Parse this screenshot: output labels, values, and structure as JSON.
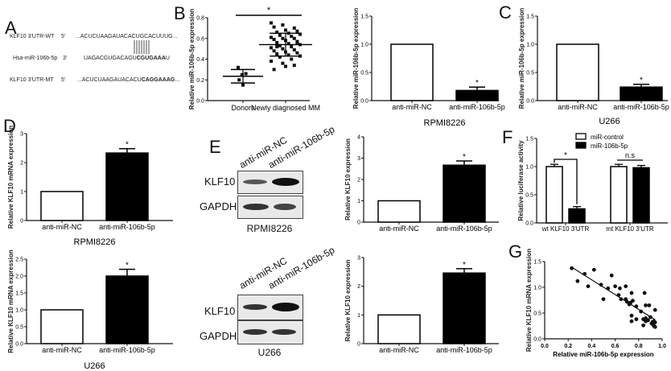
{
  "panels": {
    "A": {
      "letter": "A",
      "rows": [
        {
          "name": "KLF10 3'UTR-WT",
          "end": "5'",
          "seq_plain": "...ACUCUAAGAUACACUGCACUUUG...",
          "seq_bold": ""
        },
        {
          "name": "Hsa-miR-106b-5p",
          "end": "3'",
          "seq_plain": "UAGACGUGACAGU",
          "seq_bold": "CGUGAAA",
          "seq_tail": "U"
        },
        {
          "name": "KLF10 3'UTR-MT",
          "end": "5'",
          "seq_plain": "...ACUCUAAGAUACACU",
          "seq_bold": "CAGGAAAG",
          "seq_tail": "..."
        }
      ]
    },
    "B": {
      "letter": "B"
    },
    "C": {
      "letter": "C"
    },
    "D": {
      "letter": "D"
    },
    "E": {
      "letter": "E",
      "blots": [
        {
          "lanes": [
            "anti-miR-NC",
            "anti-miR-106b-5p"
          ],
          "proteins": [
            "KLF10",
            "GAPDH"
          ],
          "cell_line": "RPMI8226"
        },
        {
          "lanes": [
            "anti-miR-NC",
            "anti-miR-106b-5p"
          ],
          "proteins": [
            "KLF10",
            "GAPDH"
          ],
          "cell_line": "U266"
        }
      ]
    },
    "F": {
      "letter": "F"
    },
    "G": {
      "letter": "G"
    }
  },
  "chart_data": [
    {
      "id": "B",
      "type": "scatter",
      "title": "",
      "ylabel": "Relative miR-106b-5p expression",
      "xlabel": "",
      "categories": [
        "Donors",
        "Newly diagnosed MM"
      ],
      "ylim": [
        0,
        0.8
      ],
      "yticks": [
        "0.0",
        "0.2",
        "0.4",
        "0.6",
        "0.8"
      ],
      "series": [
        {
          "name": "Donors",
          "mean": 0.235,
          "sd_low": 0.17,
          "sd_high": 0.3,
          "values": [
            0.32,
            0.25,
            0.26,
            0.2,
            0.15
          ]
        },
        {
          "name": "Newly diagnosed MM",
          "mean": 0.54,
          "sd_low": 0.43,
          "sd_high": 0.65,
          "values": [
            0.75,
            0.73,
            0.7,
            0.71,
            0.68,
            0.67,
            0.66,
            0.65,
            0.64,
            0.63,
            0.62,
            0.61,
            0.6,
            0.6,
            0.59,
            0.58,
            0.57,
            0.56,
            0.55,
            0.54,
            0.53,
            0.52,
            0.51,
            0.5,
            0.49,
            0.48,
            0.47,
            0.46,
            0.45,
            0.44,
            0.43,
            0.42,
            0.4,
            0.38,
            0.36,
            0.34,
            0.3,
            0.33,
            0.56,
            0.52
          ]
        }
      ],
      "annotations": [
        "*"
      ]
    },
    {
      "id": "B-RPMI8226",
      "type": "bar",
      "ylabel": "Relative miR-106b-5p expression",
      "xlabel": "RPMI8226",
      "categories": [
        "anti-miR-NC",
        "anti-miR-106b-5p"
      ],
      "values": [
        1.0,
        0.18
      ],
      "errors": [
        0,
        0.06
      ],
      "fills": [
        "#ffffff",
        "#000000"
      ],
      "ylim": [
        0,
        1.5
      ],
      "yticks": [
        "0.0",
        "0.5",
        "1.0",
        "1.5"
      ],
      "annotations": [
        "*"
      ]
    },
    {
      "id": "C",
      "type": "bar",
      "ylabel": "Relative miR-106b-5p expression",
      "xlabel": "U266",
      "categories": [
        "anti-miR-NC",
        "anti-miR-106b-5p"
      ],
      "values": [
        1.0,
        0.24
      ],
      "errors": [
        0,
        0.05
      ],
      "fills": [
        "#ffffff",
        "#000000"
      ],
      "ylim": [
        0,
        1.5
      ],
      "yticks": [
        "0.0",
        "0.5",
        "1.0",
        "1.5"
      ],
      "annotations": [
        "*"
      ]
    },
    {
      "id": "D-RPMI8226",
      "type": "bar",
      "ylabel": "Relative KLF10 mRNA expression",
      "xlabel": "RPMI8226",
      "categories": [
        "anti-miR-NC",
        "anti-miR-106b-5p"
      ],
      "values": [
        1.0,
        2.33
      ],
      "errors": [
        0,
        0.15
      ],
      "fills": [
        "#ffffff",
        "#000000"
      ],
      "ylim": [
        0,
        3
      ],
      "yticks": [
        "0",
        "1",
        "2",
        "3"
      ],
      "annotations": [
        "*"
      ]
    },
    {
      "id": "D-U266",
      "type": "bar",
      "ylabel": "Relative KLF10 mRNA expression",
      "xlabel": "U266",
      "categories": [
        "anti-miR-NC",
        "anti-miR-106b-5p"
      ],
      "values": [
        1.0,
        2.0
      ],
      "errors": [
        0,
        0.2
      ],
      "fills": [
        "#ffffff",
        "#000000"
      ],
      "ylim": [
        0,
        2.5
      ],
      "yticks": [
        "0.0",
        "0.5",
        "1.0",
        "1.5",
        "2.0",
        "2.5"
      ],
      "annotations": [
        "*"
      ]
    },
    {
      "id": "E-RPMI8226",
      "type": "bar",
      "ylabel": "Relative KLF10 expression",
      "xlabel": "",
      "categories": [
        "anti-miR-NC",
        "anti-miR-106b-5p"
      ],
      "values": [
        1.0,
        2.67
      ],
      "errors": [
        0,
        0.2
      ],
      "fills": [
        "#ffffff",
        "#000000"
      ],
      "ylim": [
        0,
        4
      ],
      "yticks": [
        "0",
        "1",
        "2",
        "3",
        "4"
      ],
      "annotations": [
        "*"
      ]
    },
    {
      "id": "E-U266",
      "type": "bar",
      "ylabel": "Relative KLF10 expression",
      "xlabel": "",
      "categories": [
        "anti-miR-NC",
        "anti-miR-106b-5p"
      ],
      "values": [
        1.0,
        2.46
      ],
      "errors": [
        0,
        0.15
      ],
      "fills": [
        "#ffffff",
        "#000000"
      ],
      "ylim": [
        0,
        3
      ],
      "yticks": [
        "0",
        "1",
        "2",
        "3"
      ],
      "annotations": [
        "*"
      ]
    },
    {
      "id": "F",
      "type": "bar",
      "ylabel": "Relative luciferase activity",
      "xlabel": "",
      "categories": [
        "wt KLF10 3'UTR",
        "mt KLF10 3'UTR"
      ],
      "series": [
        {
          "name": "miR-control",
          "color": "#ffffff",
          "values": [
            1.0,
            1.0
          ],
          "errors": [
            0.04,
            0.04
          ]
        },
        {
          "name": "miR-106b-5p",
          "color": "#000000",
          "values": [
            0.25,
            0.98
          ],
          "errors": [
            0.04,
            0.04
          ]
        }
      ],
      "ylim": [
        0,
        1.5
      ],
      "yticks": [
        "0.0",
        "0.5",
        "1.0",
        "1.5"
      ],
      "legend_position": "top",
      "annotations": [
        "*",
        "n.s"
      ]
    },
    {
      "id": "G",
      "type": "scatter",
      "xlabel": "Relative miR-106b-5p expression",
      "ylabel": "Relative KLF10 mRNA expression",
      "xlim": [
        0,
        1.0
      ],
      "ylim": [
        0,
        1.5
      ],
      "xticks": [
        "0.0",
        "0.2",
        "0.4",
        "0.6",
        "0.8",
        "1.0"
      ],
      "yticks": [
        "0.0",
        "0.5",
        "1.0",
        "1.5"
      ],
      "points": [
        [
          0.23,
          1.37
        ],
        [
          0.28,
          1.12
        ],
        [
          0.34,
          1.26
        ],
        [
          0.37,
          1.02
        ],
        [
          0.42,
          1.34
        ],
        [
          0.48,
          1.05
        ],
        [
          0.5,
          0.77
        ],
        [
          0.54,
          0.98
        ],
        [
          0.57,
          1.23
        ],
        [
          0.6,
          1.02
        ],
        [
          0.63,
          0.85
        ],
        [
          0.64,
          0.98
        ],
        [
          0.65,
          0.77
        ],
        [
          0.69,
          1.02
        ],
        [
          0.69,
          0.77
        ],
        [
          0.7,
          0.72
        ],
        [
          0.72,
          0.67
        ],
        [
          0.73,
          0.7
        ],
        [
          0.74,
          0.89
        ],
        [
          0.75,
          0.74
        ],
        [
          0.74,
          0.45
        ],
        [
          0.74,
          0.34
        ],
        [
          0.78,
          0.38
        ],
        [
          0.78,
          0.63
        ],
        [
          0.82,
          0.53
        ],
        [
          0.84,
          0.26
        ],
        [
          0.84,
          0.38
        ],
        [
          0.85,
          0.89
        ],
        [
          0.86,
          0.4
        ],
        [
          0.86,
          0.65
        ],
        [
          0.86,
          0.34
        ],
        [
          0.88,
          0.36
        ],
        [
          0.89,
          0.65
        ],
        [
          0.9,
          0.42
        ],
        [
          0.91,
          0.3
        ],
        [
          0.92,
          0.33
        ],
        [
          0.92,
          0.28
        ],
        [
          0.93,
          0.25
        ],
        [
          0.93,
          0.34
        ],
        [
          0.94,
          0.56
        ],
        [
          0.94,
          0.23
        ],
        [
          0.94,
          0.32
        ]
      ],
      "trendline": [
        [
          0.23,
          1.39
        ],
        [
          0.94,
          0.37
        ]
      ]
    }
  ]
}
